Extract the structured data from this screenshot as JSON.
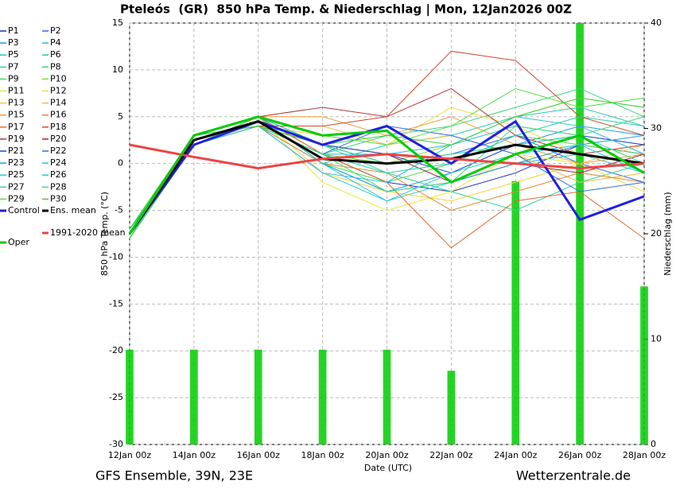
{
  "chart_data": {
    "type": "line",
    "title": "Pteleós  (GR)  850 hPa Temp. & Niederschlag | Mon, 12Jan2026 00Z",
    "xlabel": "Date (UTC)",
    "ylabel": "850 hPa Temp. (°C)",
    "y2label": "Niederschlag (mm)",
    "footer_left": "GFS Ensemble, 39N, 23E",
    "footer_right": "Wetterzentrale.de",
    "categories": [
      "12Jan 00z",
      "14Jan 00z",
      "16Jan 00z",
      "18Jan 00z",
      "20Jan 00z",
      "22Jan 00z",
      "24Jan 00z",
      "26Jan 00z",
      "28Jan 00z"
    ],
    "ylim": [
      -30,
      15
    ],
    "yticks": [
      -30,
      -25,
      -20,
      -15,
      -10,
      -5,
      0,
      5,
      10,
      15
    ],
    "y2lim": [
      0,
      40
    ],
    "y2ticks": [
      0,
      10,
      20,
      30,
      40
    ],
    "grid": true,
    "series": [
      {
        "name": "P1",
        "color": "#1c2fd0",
        "values": [
          -8,
          3,
          4,
          1,
          -2,
          -3,
          -1,
          2,
          1
        ]
      },
      {
        "name": "P2",
        "color": "#2e6be6",
        "values": [
          -7,
          2,
          5,
          2,
          0,
          1,
          3,
          0,
          -2
        ]
      },
      {
        "name": "P3",
        "color": "#1e9fd0",
        "values": [
          -8,
          3,
          4,
          0,
          -3,
          -1,
          2,
          4,
          3
        ]
      },
      {
        "name": "P4",
        "color": "#2ab7e8",
        "values": [
          -7,
          3,
          5,
          1,
          1,
          2,
          4,
          3,
          2
        ]
      },
      {
        "name": "P5",
        "color": "#1fc7d4",
        "values": [
          -8,
          2,
          4,
          -1,
          -4,
          -2,
          0,
          1,
          -1
        ]
      },
      {
        "name": "P6",
        "color": "#22ccb0",
        "values": [
          -7,
          3,
          5,
          0,
          2,
          3,
          5,
          6,
          4
        ]
      },
      {
        "name": "P7",
        "color": "#2ed39a",
        "values": [
          -8,
          3,
          4,
          2,
          -1,
          -3,
          -5,
          -2,
          0
        ]
      },
      {
        "name": "P8",
        "color": "#3ad67c",
        "values": [
          -7,
          2,
          5,
          1,
          3,
          4,
          6,
          8,
          5
        ]
      },
      {
        "name": "P9",
        "color": "#4cdb4c",
        "values": [
          -8,
          3,
          5,
          0,
          -2,
          0,
          3,
          2,
          1
        ]
      },
      {
        "name": "P10",
        "color": "#7ee03a",
        "values": [
          -7,
          3,
          4,
          1,
          0,
          2,
          5,
          7,
          6
        ]
      },
      {
        "name": "P11",
        "color": "#e8e83a",
        "values": [
          -8,
          2,
          5,
          -2,
          -5,
          -3,
          1,
          0,
          -3
        ]
      },
      {
        "name": "P12",
        "color": "#f0dc3a",
        "values": [
          -7,
          3,
          4,
          3,
          2,
          6,
          4,
          1,
          0
        ]
      },
      {
        "name": "P13",
        "color": "#f5cf3c",
        "values": [
          -8,
          3,
          5,
          -1,
          -3,
          -4,
          -2,
          0,
          2
        ]
      },
      {
        "name": "P14",
        "color": "#f2b844",
        "values": [
          -7,
          2,
          4,
          4,
          2,
          3,
          1,
          -2,
          -1
        ]
      },
      {
        "name": "P15",
        "color": "#ee9f3e",
        "values": [
          -8,
          3,
          5,
          5,
          3,
          5,
          2,
          0,
          1
        ]
      },
      {
        "name": "P16",
        "color": "#e08838",
        "values": [
          -7,
          3,
          4,
          0,
          -1,
          -5,
          -3,
          -1,
          -2
        ]
      },
      {
        "name": "P17",
        "color": "#e06a30",
        "values": [
          -8,
          2,
          5,
          1,
          -2,
          -9,
          -4,
          -3,
          -8
        ]
      },
      {
        "name": "P18",
        "color": "#d04a30",
        "values": [
          -7,
          3,
          4,
          4,
          5,
          12,
          11,
          5,
          3
        ]
      },
      {
        "name": "P19",
        "color": "#b03838",
        "values": [
          -8,
          3,
          5,
          6,
          5,
          8,
          3,
          1,
          2
        ]
      },
      {
        "name": "P20",
        "color": "#a02828",
        "values": [
          -7,
          2,
          4,
          2,
          1,
          -2,
          0,
          -1,
          1
        ]
      },
      {
        "name": "P21",
        "color": "#2848c8",
        "values": [
          -8,
          3,
          5,
          2,
          1,
          -1,
          2,
          3,
          2
        ]
      },
      {
        "name": "P22",
        "color": "#3070e0",
        "values": [
          -7,
          3,
          4,
          1,
          4,
          3,
          1,
          -3,
          -2
        ]
      },
      {
        "name": "P23",
        "color": "#20a0d8",
        "values": [
          -8,
          2,
          5,
          0,
          -3,
          -2,
          0,
          2,
          3
        ]
      },
      {
        "name": "P24",
        "color": "#30b8e8",
        "values": [
          -7,
          3,
          4,
          -1,
          -2,
          2,
          5,
          4,
          1
        ]
      },
      {
        "name": "P25",
        "color": "#28c8d8",
        "values": [
          -8,
          3,
          5,
          0,
          -4,
          -1,
          1,
          2,
          -1
        ]
      },
      {
        "name": "P26",
        "color": "#28d0b0",
        "values": [
          -7,
          2,
          4,
          1,
          -1,
          0,
          3,
          5,
          4
        ]
      },
      {
        "name": "P27",
        "color": "#30d890",
        "values": [
          -8,
          3,
          5,
          2,
          0,
          1,
          2,
          3,
          0
        ]
      },
      {
        "name": "P28",
        "color": "#40dc70",
        "values": [
          -7,
          3,
          4,
          1,
          -3,
          -2,
          4,
          3,
          5
        ]
      },
      {
        "name": "P29",
        "color": "#50e040",
        "values": [
          -8,
          2,
          5,
          3,
          2,
          4,
          8,
          6,
          7
        ]
      },
      {
        "name": "P30",
        "color": "#40d040",
        "values": [
          -7,
          3,
          4,
          2,
          3,
          2,
          5,
          7,
          6
        ]
      },
      {
        "name": "Control",
        "color": "#2020e0",
        "values": [
          -7.5,
          2,
          4.5,
          2,
          4,
          0,
          4.5,
          -6,
          -3.5
        ]
      },
      {
        "name": "Ens. mean",
        "color": "#000000",
        "values": [
          -7.5,
          2.5,
          4.5,
          0.5,
          0,
          0.5,
          2,
          1,
          0
        ]
      },
      {
        "name": "1991-2020 mean",
        "color": "#ee4444",
        "values": [
          2,
          0.7,
          -0.5,
          0.5,
          1,
          0.5,
          0,
          -0.5,
          0
        ]
      },
      {
        "name": "Oper",
        "color": "#00cc00",
        "values": [
          -7.5,
          3,
          5,
          3,
          3.5,
          -2,
          1,
          3,
          -1
        ]
      }
    ],
    "precipitation": {
      "axis": "y2",
      "color": "#00cc00",
      "values": [
        9,
        9,
        9,
        9,
        9,
        7,
        25,
        40,
        15
      ]
    }
  }
}
